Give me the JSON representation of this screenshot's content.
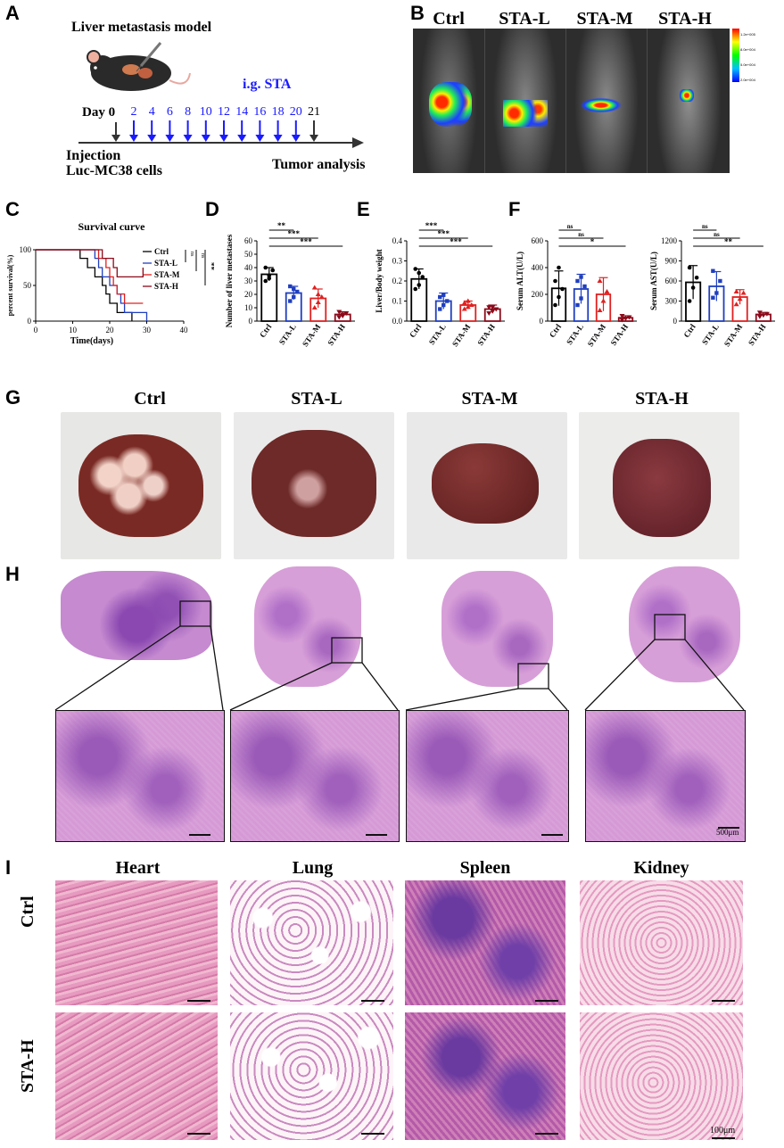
{
  "panel_labels": [
    "A",
    "B",
    "C",
    "D",
    "E",
    "F",
    "G",
    "H",
    "I"
  ],
  "panelA": {
    "title": "Liver metastasis model",
    "treatment": "i.g. STA",
    "day0": "Day 0",
    "days": [
      "2",
      "4",
      "6",
      "8",
      "10",
      "12",
      "14",
      "16",
      "18",
      "20"
    ],
    "day_end": "21",
    "injection": "Injection",
    "cells": "Luc-MC38 cells",
    "analysis": "Tumor analysis",
    "colors": {
      "arrow_treat": "#1a1aff",
      "arrow_black": "#333333"
    }
  },
  "panelB": {
    "groups": [
      "Ctrl",
      "STA-L",
      "STA-M",
      "STA-H"
    ],
    "scale_ticks": [
      "1.2e+005",
      "8.0e+004",
      "5.0e+004",
      "2.0e+004"
    ]
  },
  "group_colors": {
    "Ctrl": "#000000",
    "STA-L": "#1f3fbf",
    "STA-M": "#e02020",
    "STA-H": "#8b0a1a"
  },
  "chart_data": [
    {
      "id": "C",
      "type": "line",
      "title": "Survival curve",
      "xlabel": "Time(days)",
      "ylabel": "percent survival(%)",
      "xlim": [
        0,
        40
      ],
      "ylim": [
        0,
        100
      ],
      "xticks": [
        "0",
        "10",
        "20",
        "30",
        "40"
      ],
      "yticks": [
        "0",
        "50",
        "100"
      ],
      "series": [
        {
          "name": "Ctrl",
          "color": "#000000",
          "steps": [
            [
              0,
              100
            ],
            [
              12,
              100
            ],
            [
              12,
              88
            ],
            [
              14,
              88
            ],
            [
              14,
              75
            ],
            [
              16,
              75
            ],
            [
              16,
              62
            ],
            [
              18,
              62
            ],
            [
              18,
              50
            ],
            [
              19,
              50
            ],
            [
              19,
              38
            ],
            [
              20,
              38
            ],
            [
              20,
              25
            ],
            [
              22,
              25
            ],
            [
              22,
              12
            ],
            [
              26,
              12
            ],
            [
              26,
              0
            ]
          ]
        },
        {
          "name": "STA-L",
          "color": "#1f3fbf",
          "steps": [
            [
              0,
              100
            ],
            [
              16,
              100
            ],
            [
              16,
              88
            ],
            [
              17,
              88
            ],
            [
              17,
              75
            ],
            [
              18,
              75
            ],
            [
              18,
              62
            ],
            [
              20,
              62
            ],
            [
              20,
              50
            ],
            [
              22,
              50
            ],
            [
              22,
              38
            ],
            [
              23,
              38
            ],
            [
              23,
              25
            ],
            [
              24,
              25
            ],
            [
              24,
              12
            ],
            [
              30,
              12
            ],
            [
              30,
              0
            ]
          ]
        },
        {
          "name": "STA-M",
          "color": "#e02020",
          "steps": [
            [
              0,
              100
            ],
            [
              17,
              100
            ],
            [
              17,
              88
            ],
            [
              19,
              88
            ],
            [
              19,
              75
            ],
            [
              20,
              75
            ],
            [
              20,
              62
            ],
            [
              21,
              62
            ],
            [
              21,
              50
            ],
            [
              22,
              50
            ],
            [
              22,
              38
            ],
            [
              24,
              38
            ],
            [
              24,
              25
            ],
            [
              29,
              25
            ]
          ]
        },
        {
          "name": "STA-H",
          "color": "#8b0a1a",
          "steps": [
            [
              0,
              100
            ],
            [
              18,
              100
            ],
            [
              18,
              88
            ],
            [
              21,
              88
            ],
            [
              21,
              75
            ],
            [
              22,
              75
            ],
            [
              22,
              62
            ],
            [
              24,
              62
            ],
            [
              24,
              62
            ],
            [
              29,
              62
            ],
            [
              29,
              75
            ]
          ]
        }
      ],
      "significance": [
        "ns",
        "ns",
        "**"
      ]
    },
    {
      "id": "D",
      "type": "bar",
      "ylabel": "Number of liver metastases",
      "categories": [
        "Ctrl",
        "STA-L",
        "STA-M",
        "STA-H"
      ],
      "values": [
        35,
        21,
        17,
        5
      ],
      "errors": [
        5,
        5,
        7,
        2
      ],
      "points": [
        [
          30,
          34,
          38,
          40,
          32
        ],
        [
          15,
          18,
          22,
          26,
          24
        ],
        [
          10,
          14,
          18,
          25,
          20
        ],
        [
          3,
          4,
          6,
          7,
          5
        ]
      ],
      "ylim": [
        0,
        60
      ],
      "yticks": [
        "0",
        "10",
        "20",
        "30",
        "40",
        "50",
        "60"
      ],
      "significance": [
        "**",
        "***",
        "***"
      ]
    },
    {
      "id": "E",
      "type": "bar",
      "ylabel": "Liver/Body weight",
      "categories": [
        "Ctrl",
        "STA-L",
        "STA-M",
        "STA-H"
      ],
      "values": [
        0.21,
        0.1,
        0.08,
        0.06
      ],
      "errors": [
        0.05,
        0.04,
        0.02,
        0.02
      ],
      "points": [
        [
          0.16,
          0.18,
          0.22,
          0.26,
          0.24
        ],
        [
          0.06,
          0.08,
          0.1,
          0.12,
          0.13
        ],
        [
          0.06,
          0.07,
          0.08,
          0.09,
          0.1
        ],
        [
          0.04,
          0.05,
          0.06,
          0.07,
          0.07
        ]
      ],
      "ylim": [
        0,
        0.4
      ],
      "yticks": [
        "0.0",
        "0.1",
        "0.2",
        "0.3",
        "0.4"
      ],
      "significance": [
        "***",
        "***",
        "***"
      ]
    },
    {
      "id": "F1",
      "type": "bar",
      "ylabel": "Serum ALT(U/L)",
      "categories": [
        "Ctrl",
        "STA-L",
        "STA-M",
        "STA-H"
      ],
      "values": [
        245,
        240,
        200,
        25
      ],
      "errors": [
        130,
        110,
        125,
        15
      ],
      "points": [
        [
          120,
          180,
          240,
          300,
          400
        ],
        [
          120,
          170,
          260,
          300,
          330
        ],
        [
          80,
          150,
          220,
          300
        ],
        [
          10,
          20,
          30,
          40
        ]
      ],
      "ylim": [
        0,
        600
      ],
      "yticks": [
        "0",
        "200",
        "400",
        "600"
      ],
      "significance": [
        "ns",
        "ns",
        "*"
      ]
    },
    {
      "id": "F2",
      "type": "bar",
      "ylabel": "Serum AST(U/L)",
      "categories": [
        "Ctrl",
        "STA-L",
        "STA-M",
        "STA-H"
      ],
      "values": [
        580,
        520,
        360,
        100
      ],
      "errors": [
        250,
        220,
        110,
        30
      ],
      "points": [
        [
          300,
          500,
          650,
          800
        ],
        [
          350,
          420,
          600,
          750
        ],
        [
          250,
          330,
          420,
          440
        ],
        [
          70,
          90,
          110,
          130
        ]
      ],
      "ylim": [
        0,
        1200
      ],
      "yticks": [
        "0",
        "300",
        "600",
        "900",
        "1200"
      ],
      "significance": [
        "ns",
        "ns",
        "**"
      ]
    }
  ],
  "panelG": {
    "groups": [
      "Ctrl",
      "STA-L",
      "STA-M",
      "STA-H"
    ]
  },
  "panelH": {
    "scale": "500μm"
  },
  "panelI": {
    "organs": [
      "Heart",
      "Lung",
      "Spleen",
      "Kidney"
    ],
    "rows": [
      "Ctrl",
      "STA-H"
    ],
    "scale": "100μm"
  }
}
